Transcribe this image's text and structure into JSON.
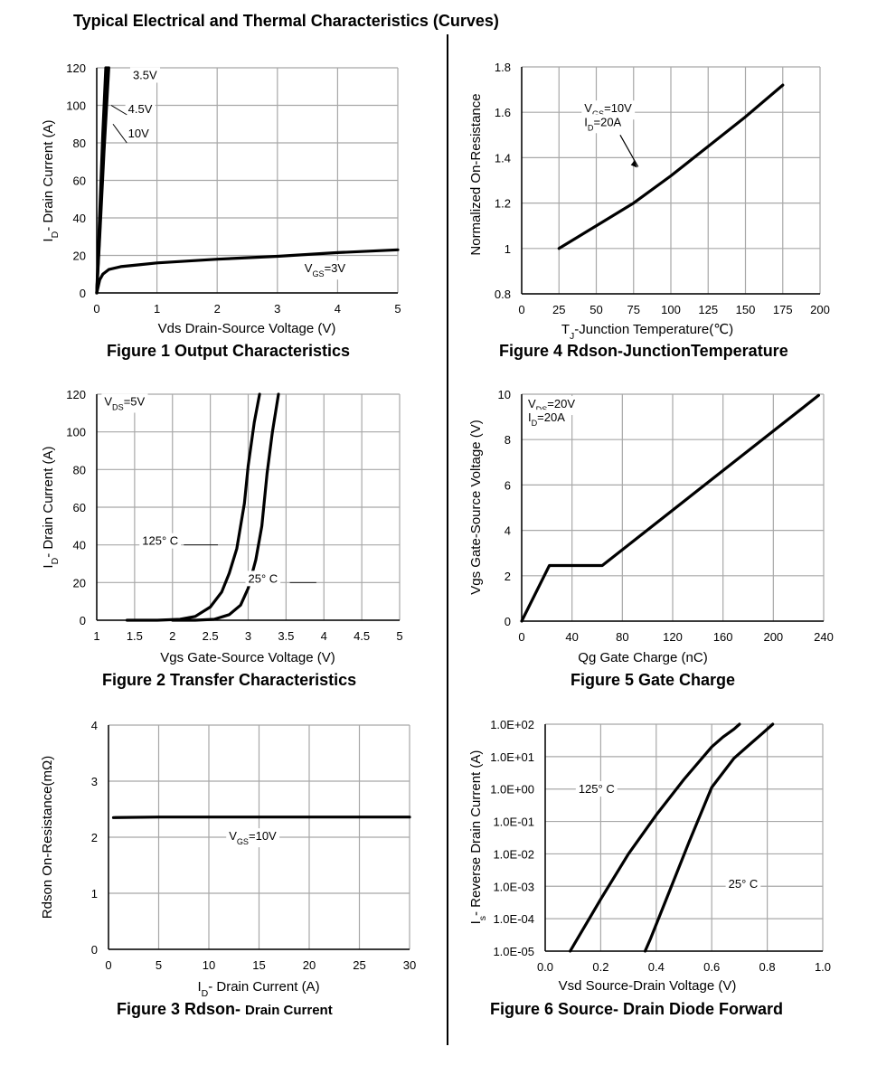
{
  "page": {
    "title": "Typical Electrical and Thermal Characteristics (Curves)",
    "captions": {
      "fig1": "Figure 1 Output Characteristics",
      "fig2": "Figure 2 Transfer Characteristics",
      "fig3_main": "Figure 3 Rdson-",
      "fig3_small": "Drain Current",
      "fig4": "Figure 4 Rdson-JunctionTemperature",
      "fig5": "Figure 5 Gate Charge",
      "fig6": "Figure 6 Source- Drain Diode Forward"
    }
  },
  "chart_data": [
    {
      "id": "fig1",
      "type": "line",
      "xlabel": "Vds Drain-Source Voltage (V)",
      "ylabel": "I_D- Drain Current (A)",
      "xlim": [
        0,
        5
      ],
      "ylim": [
        0,
        120
      ],
      "xticks": [
        0,
        1,
        2,
        3,
        4,
        5
      ],
      "yticks": [
        0,
        20,
        40,
        60,
        80,
        100,
        120
      ],
      "grid": true,
      "series": [
        {
          "name": "3.5V",
          "x": [
            0,
            0.05,
            0.12,
            0.2
          ],
          "y": [
            0,
            30,
            75,
            120
          ]
        },
        {
          "name": "4.5V",
          "x": [
            0,
            0.05,
            0.11,
            0.17
          ],
          "y": [
            0,
            33,
            80,
            120
          ]
        },
        {
          "name": "10V",
          "x": [
            0,
            0.04,
            0.1,
            0.15
          ],
          "y": [
            0,
            35,
            85,
            120
          ]
        },
        {
          "name": "V_GS=3V",
          "x": [
            0,
            0.05,
            0.1,
            0.2,
            0.4,
            0.7,
            1,
            2,
            3,
            4,
            5
          ],
          "y": [
            0,
            7,
            10,
            12.5,
            14,
            15,
            16,
            18,
            19.5,
            21.5,
            23
          ]
        }
      ],
      "annotations": [
        {
          "text": "3.5V",
          "x": 0.6,
          "y": 114
        },
        {
          "text": "4.5V",
          "x": 0.52,
          "y": 96
        },
        {
          "text": "10V",
          "x": 0.52,
          "y": 83
        },
        {
          "text": "V_GS=3V",
          "x": 3.45,
          "y": 11
        }
      ]
    },
    {
      "id": "fig2",
      "type": "line",
      "xlabel": "Vgs Gate-Source Voltage (V)",
      "ylabel": "I_D- Drain Current (A)",
      "xlim": [
        1,
        5
      ],
      "ylim": [
        0,
        120
      ],
      "xticks": [
        1,
        1.5,
        2,
        2.5,
        3,
        3.5,
        4,
        4.5,
        5
      ],
      "yticks": [
        0,
        20,
        40,
        60,
        80,
        100,
        120
      ],
      "grid": true,
      "series": [
        {
          "name": "125° C",
          "x": [
            1.4,
            1.8,
            2.1,
            2.3,
            2.5,
            2.65,
            2.75,
            2.85,
            2.95,
            3.0,
            3.08,
            3.15
          ],
          "y": [
            0,
            0,
            0.5,
            2,
            7,
            15,
            25,
            38,
            62,
            82,
            105,
            120
          ]
        },
        {
          "name": "25° C",
          "x": [
            2.0,
            2.3,
            2.55,
            2.75,
            2.9,
            3.0,
            3.1,
            3.18,
            3.25,
            3.32,
            3.4
          ],
          "y": [
            0,
            0,
            0.5,
            3,
            8,
            17,
            32,
            50,
            78,
            100,
            120
          ]
        }
      ],
      "annotations": [
        {
          "text": "V_DS=5V",
          "x": 1.1,
          "y": 114
        },
        {
          "text": "125° C",
          "x": 1.6,
          "y": 40
        },
        {
          "text": "25° C",
          "x": 3.0,
          "y": 20
        }
      ]
    },
    {
      "id": "fig3",
      "type": "line",
      "xlabel": "I_D- Drain Current (A)",
      "ylabel": "Rdson On-Resistance(mΩ)",
      "xlim": [
        0,
        30
      ],
      "ylim": [
        0,
        4
      ],
      "xticks": [
        0,
        5,
        10,
        15,
        20,
        25,
        30
      ],
      "yticks": [
        0,
        1,
        2,
        3,
        4
      ],
      "grid": true,
      "series": [
        {
          "name": "V_GS=10V",
          "x": [
            0.5,
            5,
            10,
            15,
            20,
            25,
            30
          ],
          "y": [
            2.35,
            2.36,
            2.36,
            2.36,
            2.36,
            2.36,
            2.36
          ]
        }
      ],
      "annotations": [
        {
          "text": "V_GS=10V",
          "x": 12,
          "y": 1.95
        }
      ]
    },
    {
      "id": "fig4",
      "type": "line",
      "xlabel": "T_J-Junction Temperature(℃)",
      "ylabel": "Normalized On-Resistance",
      "xlim": [
        0,
        200
      ],
      "ylim": [
        0.8,
        1.8
      ],
      "xticks": [
        0,
        25,
        50,
        75,
        100,
        125,
        150,
        175,
        200
      ],
      "yticks": [
        0.8,
        1,
        1.2,
        1.4,
        1.6,
        1.8
      ],
      "ytick_labels": [
        "0.8",
        "1",
        "1.2",
        "1.4",
        "1.6",
        "1.8"
      ],
      "grid": true,
      "series": [
        {
          "name": "V_GS=10V I_D=20A",
          "x": [
            25,
            50,
            75,
            100,
            125,
            150,
            175
          ],
          "y": [
            1.0,
            1.1,
            1.2,
            1.32,
            1.45,
            1.58,
            1.72
          ]
        }
      ],
      "annotations": [
        {
          "text": "V_GS=10V",
          "x": 42,
          "y": 1.6
        },
        {
          "text": "I_D=20A",
          "x": 42,
          "y": 1.54
        }
      ]
    },
    {
      "id": "fig5",
      "type": "line",
      "xlabel": "Qg Gate Charge (nC)",
      "ylabel": "Vgs Gate-Source Voltage (V)",
      "xlim": [
        0,
        240
      ],
      "ylim": [
        0,
        10
      ],
      "xticks": [
        0,
        40,
        80,
        120,
        160,
        200,
        240
      ],
      "yticks": [
        0,
        2,
        4,
        6,
        8,
        10
      ],
      "grid": true,
      "series": [
        {
          "name": "V_DS=20V I_D=20A",
          "x": [
            0,
            22,
            64,
            236
          ],
          "y": [
            0,
            2.45,
            2.45,
            9.95
          ]
        }
      ],
      "annotations": [
        {
          "text": "V_DS=20V",
          "x": 5,
          "y": 9.4
        },
        {
          "text": "I_D=20A",
          "x": 5,
          "y": 8.8
        }
      ]
    },
    {
      "id": "fig6",
      "type": "line",
      "scale": "log-y",
      "xlabel": "Vsd Source-Drain Voltage (V)",
      "ylabel": "I_s- Reverse Drain Current (A)",
      "xlim": [
        0,
        1.0
      ],
      "ylim_exp": [
        -5,
        2
      ],
      "xticks": [
        0.0,
        0.2,
        0.4,
        0.6,
        0.8,
        1.0
      ],
      "xtick_labels": [
        "0.0",
        "0.2",
        "0.4",
        "0.6",
        "0.8",
        "1.0"
      ],
      "yticks_exp": [
        -5,
        -4,
        -3,
        -2,
        -1,
        0,
        1,
        2
      ],
      "ytick_labels": [
        "1.0E-05",
        "1.0E-04",
        "1.0E-03",
        "1.0E-02",
        "1.0E-01",
        "1.0E+00",
        "1.0E+01",
        "1.0E+02"
      ],
      "grid": true,
      "series": [
        {
          "name": "125° C",
          "x": [
            0.09,
            0.2,
            0.3,
            0.4,
            0.5,
            0.6,
            0.64,
            0.68,
            0.7
          ],
          "y_exp": [
            -5,
            -3.4,
            -2.0,
            -0.8,
            0.3,
            1.3,
            1.6,
            1.85,
            2
          ]
        },
        {
          "name": "25° C",
          "x": [
            0.36,
            0.38,
            0.45,
            0.52,
            0.6,
            0.68,
            0.74,
            0.78,
            0.82
          ],
          "y_exp": [
            -5,
            -4.6,
            -3.1,
            -1.6,
            0.05,
            0.95,
            1.4,
            1.7,
            2
          ]
        }
      ],
      "annotations": [
        {
          "text": "125° C",
          "x": 0.12,
          "y_exp": -0.12
        },
        {
          "text": "25° C",
          "x": 0.66,
          "y_exp": -3.05
        }
      ]
    }
  ]
}
